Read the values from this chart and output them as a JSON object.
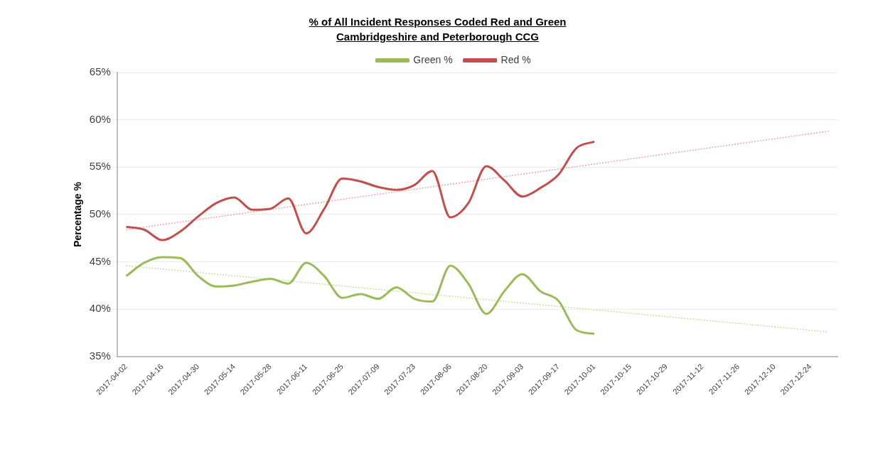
{
  "chart_data": {
    "type": "line",
    "title": "% of All Incident Responses Coded Red and Green",
    "subtitle": "Cambridgeshire and Peterborough CCG",
    "ylabel": "Percentage %",
    "categories": [
      "2017-04-02",
      null,
      "2017-04-16",
      null,
      "2017-04-30",
      null,
      "2017-05-14",
      null,
      "2017-05-28",
      null,
      "2017-06-11",
      null,
      "2017-06-25",
      null,
      "2017-07-09",
      null,
      "2017-07-23",
      null,
      "2017-08-06",
      null,
      "2017-08-20",
      null,
      "2017-09-03",
      null,
      "2017-09-17",
      null,
      "2017-10-01",
      null,
      "2017-10-15",
      null,
      "2017-10-29",
      null,
      "2017-11-12",
      null,
      "2017-11-26",
      null,
      "2017-12-10",
      null,
      "2017-12-24",
      null
    ],
    "series": [
      {
        "name": "Green %",
        "color": "#9bbb59",
        "values": [
          43.5,
          44.9,
          45.5,
          45.4,
          43.5,
          42.4,
          42.5,
          42.9,
          43.2,
          42.7,
          44.9,
          43.5,
          41.2,
          41.6,
          41.1,
          42.3,
          41.1,
          40.8,
          44.6,
          42.7,
          39.5,
          41.9,
          43.7,
          41.9,
          40.9,
          37.8,
          37.4,
          null,
          null,
          null,
          null,
          null,
          null,
          null,
          null,
          null,
          null,
          null,
          null,
          null
        ]
      },
      {
        "name": "Red %",
        "color": "#c0504d",
        "values": [
          48.7,
          48.4,
          47.3,
          48.2,
          49.8,
          51.2,
          51.8,
          50.5,
          50.6,
          51.7,
          48.0,
          50.6,
          53.8,
          53.5,
          52.9,
          52.6,
          53.1,
          54.6,
          49.7,
          51.2,
          55.1,
          53.6,
          51.9,
          52.8,
          54.2,
          57.0,
          57.7,
          null,
          null,
          null,
          null,
          null,
          null,
          null,
          null,
          null,
          null,
          null,
          null,
          null
        ]
      },
      {
        "type": "line",
        "color": "#c8e0a8",
        "line_style": "dotted",
        "values": [
          44.6,
          null,
          null,
          null,
          null,
          null,
          null,
          null,
          null,
          null,
          null,
          null,
          null,
          null,
          null,
          null,
          null,
          null,
          null,
          null,
          null,
          null,
          null,
          null,
          null,
          null,
          null,
          null,
          null,
          null,
          null,
          null,
          null,
          null,
          null,
          null,
          null,
          null,
          null,
          37.6
        ]
      },
      {
        "type": "line",
        "color": "#eaa8a6",
        "line_style": "dotted",
        "values": [
          48.4,
          null,
          null,
          null,
          null,
          null,
          null,
          null,
          null,
          null,
          null,
          null,
          null,
          null,
          null,
          null,
          null,
          null,
          null,
          null,
          null,
          null,
          null,
          null,
          null,
          null,
          null,
          null,
          null,
          null,
          null,
          null,
          null,
          null,
          null,
          null,
          null,
          null,
          null,
          58.8
        ]
      }
    ],
    "ylim": [
      35,
      65
    ],
    "yticks": [
      {
        "value": 35,
        "label": "35%"
      },
      {
        "value": 40,
        "label": "40%"
      },
      {
        "value": 45,
        "label": "45%"
      },
      {
        "value": 50,
        "label": "50%"
      },
      {
        "value": 55,
        "label": "55%"
      },
      {
        "value": 60,
        "label": "60%"
      },
      {
        "value": 65,
        "label": "65%"
      }
    ],
    "grid": "y",
    "legend": "top",
    "marker": "none",
    "line_style": "solid"
  }
}
